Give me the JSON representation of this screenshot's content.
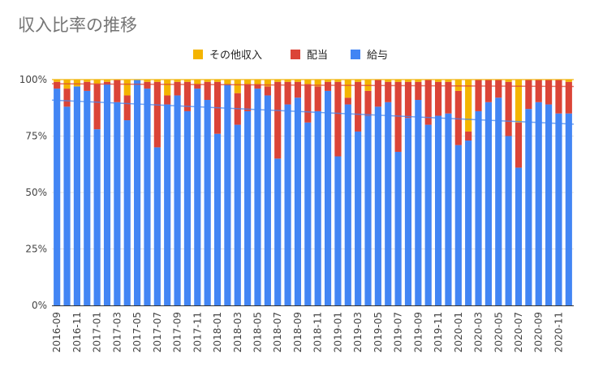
{
  "chart_data": {
    "type": "bar",
    "stacked": true,
    "title": "収入比率の推移",
    "legend_position": "top",
    "xlabel": "",
    "ylabel": "",
    "ylim": [
      0,
      100
    ],
    "y_ticks": [
      "0%",
      "25%",
      "50%",
      "75%",
      "100%"
    ],
    "grid": true,
    "categories": [
      "2016-09",
      "2016-10",
      "2016-11",
      "2016-12",
      "2017-01",
      "2017-02",
      "2017-03",
      "2017-04",
      "2017-05",
      "2017-06",
      "2017-07",
      "2017-08",
      "2017-09",
      "2017-10",
      "2017-11",
      "2017-12",
      "2018-01",
      "2018-02",
      "2018-03",
      "2018-04",
      "2018-05",
      "2018-06",
      "2018-07",
      "2018-08",
      "2018-09",
      "2018-10",
      "2018-11",
      "2018-12",
      "2019-01",
      "2019-02",
      "2019-03",
      "2019-04",
      "2019-05",
      "2019-06",
      "2019-07",
      "2019-08",
      "2019-09",
      "2019-10",
      "2019-11",
      "2019-12",
      "2020-01",
      "2020-02",
      "2020-03",
      "2020-04",
      "2020-05",
      "2020-06",
      "2020-07",
      "2020-08",
      "2020-09",
      "2020-10",
      "2020-11",
      "2020-12"
    ],
    "x_tick_labels": [
      "2016-09",
      "2016-11",
      "2017-01",
      "2017-03",
      "2017-05",
      "2017-07",
      "2017-09",
      "2017-11",
      "2018-01",
      "2018-03",
      "2018-05",
      "2018-07",
      "2018-09",
      "2018-11",
      "2019-01",
      "2019-03",
      "2019-05",
      "2019-07",
      "2019-09",
      "2019-11",
      "2020-01",
      "2020-03",
      "2020-05",
      "2020-07",
      "2020-09",
      "2020-11"
    ],
    "series": [
      {
        "name": "給与",
        "color": "#4285f4",
        "values": [
          96,
          88,
          97,
          95,
          78,
          98,
          90,
          82,
          100,
          96,
          70,
          89,
          93,
          86,
          96,
          91,
          76,
          98,
          80,
          86,
          96,
          93,
          65,
          89,
          92,
          81,
          86,
          95,
          66,
          89,
          77,
          84,
          88,
          90,
          68,
          83,
          91,
          80,
          84,
          85,
          71,
          73,
          86,
          90,
          92,
          75,
          61,
          87,
          90,
          89,
          85,
          85
        ]
      },
      {
        "name": "配当",
        "color": "#db4437",
        "values": [
          3,
          8,
          0,
          4,
          20,
          1,
          10,
          11,
          0,
          3,
          29,
          4,
          6,
          13,
          2,
          8,
          23,
          0,
          14,
          12,
          2,
          4,
          34,
          10,
          7,
          17,
          11,
          4,
          33,
          3,
          22,
          11,
          12,
          9,
          31,
          16,
          8,
          20,
          15,
          14,
          24,
          4,
          14,
          10,
          8,
          24,
          20,
          13,
          10,
          11,
          15,
          14
        ]
      },
      {
        "name": "その他収入",
        "color": "#f4b400",
        "values": [
          1,
          4,
          3,
          1,
          2,
          1,
          0,
          7,
          0,
          1,
          1,
          7,
          1,
          1,
          2,
          1,
          1,
          2,
          6,
          2,
          2,
          3,
          1,
          1,
          1,
          2,
          3,
          1,
          1,
          8,
          1,
          5,
          0,
          1,
          1,
          1,
          1,
          0,
          1,
          1,
          5,
          23,
          0,
          0,
          0,
          1,
          19,
          0,
          0,
          0,
          0,
          1
        ]
      }
    ],
    "trendline_labels": []
  }
}
